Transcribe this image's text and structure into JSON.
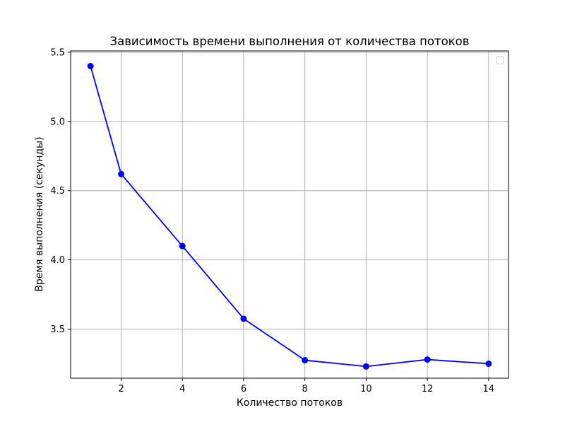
{
  "chart_data": {
    "type": "line",
    "title": "Зависимость времени выполнения от количества потоков",
    "xlabel": "Количество потоков",
    "ylabel": "Время выполнения (секунды)",
    "x": [
      1,
      2,
      4,
      6,
      8,
      10,
      12,
      14
    ],
    "series": [
      {
        "name": "",
        "values": [
          5.4,
          4.62,
          4.1,
          3.575,
          3.275,
          3.23,
          3.28,
          3.25
        ],
        "color": "#0000ff",
        "marker": "circle"
      }
    ],
    "xlim": [
      0.35,
      14.65
    ],
    "ylim": [
      3.145,
      5.51
    ],
    "x_ticks": [
      2,
      4,
      6,
      8,
      10,
      12,
      14
    ],
    "y_ticks": [
      3.5,
      4.0,
      4.5,
      5.0,
      5.5
    ],
    "x_tick_labels": [
      "2",
      "4",
      "6",
      "8",
      "10",
      "12",
      "14"
    ],
    "y_tick_labels": [
      "3.5",
      "4.0",
      "4.5",
      "5.0",
      "5.5"
    ],
    "grid": true,
    "grid_color": "#b0b0b0",
    "legend": {
      "position": "top-right",
      "entries": []
    }
  }
}
